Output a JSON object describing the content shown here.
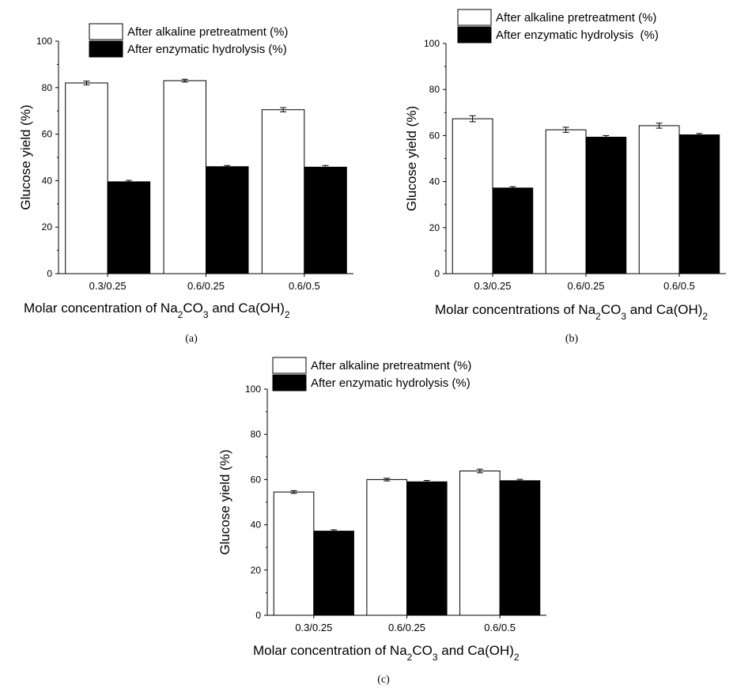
{
  "chart_data": [
    {
      "type": "bar",
      "categories": [
        "0.3/0.25",
        "0.6/0.25",
        "0.6/0.5"
      ],
      "series": [
        {
          "name": "After alkaline pretreatment (%)",
          "values": [
            82,
            83,
            70.5
          ],
          "errors": [
            0.8,
            0.6,
            0.9
          ],
          "color": "#ffffff"
        },
        {
          "name": "After enzymatic hydrolysis (%)",
          "values": [
            39.5,
            46,
            45.8
          ],
          "errors": [
            0.6,
            0.5,
            0.7
          ],
          "color": "#000000"
        }
      ],
      "ylabel": "Glucose yield (%)",
      "xlabel_main": "Molar concentration of Na",
      "xlabel_sub1": "2",
      "xlabel_mid": "CO",
      "xlabel_sub2": "3",
      "xlabel_and": " and Ca(OH)",
      "xlabel_sub3": "2",
      "ylim": [
        0,
        100
      ],
      "yticks": [
        0,
        20,
        40,
        60,
        80,
        100
      ],
      "panel_label": "(a)",
      "legend_position": "top-right"
    },
    {
      "type": "bar",
      "categories": [
        "0.3/0.25",
        "0.6/0.25",
        "0.6/0.5"
      ],
      "series": [
        {
          "name": "After alkaline pretreatment (%)",
          "values": [
            67.3,
            62.5,
            64.3
          ],
          "errors": [
            1.3,
            1.1,
            1.1
          ],
          "color": "#ffffff"
        },
        {
          "name": "After enzymatic hydrolysis  (%)",
          "values": [
            37.2,
            59.3,
            60.3
          ],
          "errors": [
            0.6,
            0.7,
            0.6
          ],
          "color": "#000000"
        }
      ],
      "ylabel": "Glucose yield (%)",
      "xlabel_main": "Molar concentrations of Na",
      "xlabel_sub1": "2",
      "xlabel_mid": "CO",
      "xlabel_sub2": "3",
      "xlabel_and": " and Ca(OH)",
      "xlabel_sub3": "2",
      "ylim": [
        0,
        100
      ],
      "yticks": [
        0,
        20,
        40,
        60,
        80,
        100
      ],
      "panel_label": "(b)",
      "legend_position": "top-right"
    },
    {
      "type": "bar",
      "categories": [
        "0.3/0.25",
        "0.6/0.25",
        "0.6/0.5"
      ],
      "series": [
        {
          "name": "After alkaline pretreatment (%)",
          "values": [
            54.5,
            60,
            63.8
          ],
          "errors": [
            0.6,
            0.6,
            0.8
          ],
          "color": "#ffffff"
        },
        {
          "name": "After enzymatic hydrolysis (%)",
          "values": [
            37.2,
            59,
            59.5
          ],
          "errors": [
            0.6,
            0.6,
            0.6
          ],
          "color": "#000000"
        }
      ],
      "ylabel": "Glucose yield (%)",
      "xlabel_main": "Molar concentration of Na",
      "xlabel_sub1": "2",
      "xlabel_mid": "CO",
      "xlabel_sub2": "3",
      "xlabel_and": " and Ca(OH)",
      "xlabel_sub3": "2",
      "ylim": [
        0,
        100
      ],
      "yticks": [
        0,
        20,
        40,
        60,
        80,
        100
      ],
      "panel_label": "(c)",
      "legend_position": "top-right"
    }
  ]
}
